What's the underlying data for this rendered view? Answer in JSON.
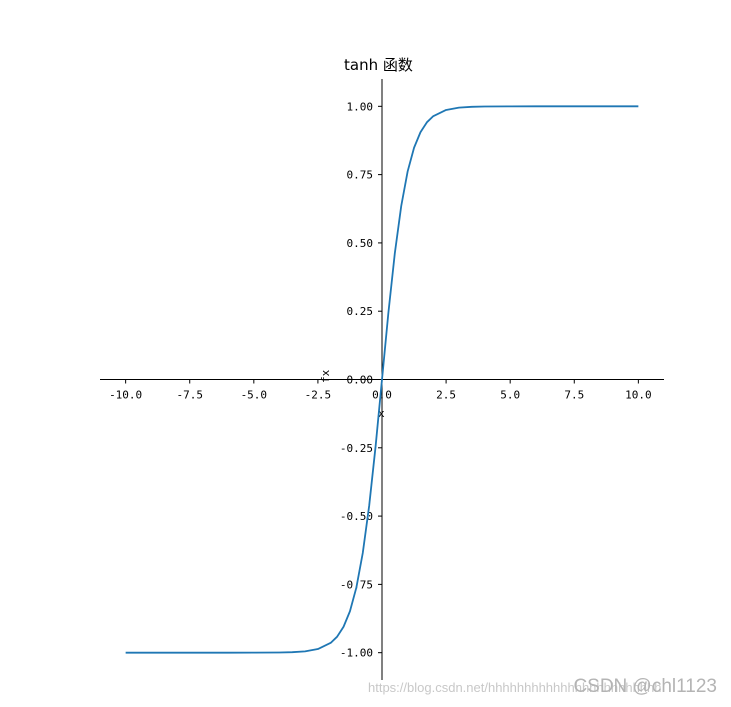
{
  "chart_data": {
    "type": "line",
    "title": "tanh 函数",
    "xlabel": "x",
    "ylabel": "fx",
    "xlim": [
      -11,
      11
    ],
    "ylim": [
      -1.1,
      1.1
    ],
    "x_ticks": [
      -10.0,
      -7.5,
      -5.0,
      -2.5,
      0.0,
      2.5,
      5.0,
      7.5,
      10.0
    ],
    "x_tick_labels": [
      "-10.0",
      "-7.5",
      "-5.0",
      "-2.5",
      "0.0",
      "2.5",
      "5.0",
      "7.5",
      "10.0"
    ],
    "y_ticks": [
      1.0,
      0.75,
      0.5,
      0.25,
      0.0,
      -0.25,
      -0.5,
      -0.75,
      -1.0
    ],
    "y_tick_labels": [
      "1.00",
      "0.75",
      "0.50",
      "0.25",
      "0.00",
      "-0.25",
      "-0.50",
      "-0.75",
      "-1.00"
    ],
    "grid": false,
    "series": [
      {
        "color": "#1f77b4",
        "x": [
          -10,
          -8,
          -6,
          -5,
          -4,
          -3.5,
          -3,
          -2.5,
          -2,
          -1.75,
          -1.5,
          -1.25,
          -1,
          -0.75,
          -0.5,
          -0.25,
          0,
          0.25,
          0.5,
          0.75,
          1,
          1.25,
          1.5,
          1.75,
          2,
          2.5,
          3,
          3.5,
          4,
          5,
          6,
          8,
          10
        ],
        "y": [
          -1.0,
          -1.0,
          -1.0,
          -0.9999,
          -0.9993,
          -0.9982,
          -0.9951,
          -0.9866,
          -0.964,
          -0.9414,
          -0.9051,
          -0.8483,
          -0.7616,
          -0.6351,
          -0.4621,
          -0.2449,
          0.0,
          0.2449,
          0.4621,
          0.6351,
          0.7616,
          0.8483,
          0.9051,
          0.9414,
          0.964,
          0.9866,
          0.9951,
          0.9982,
          0.9993,
          0.9999,
          1.0,
          1.0,
          1.0
        ]
      }
    ]
  },
  "watermark": {
    "url": "https://blog.csdn.net/hhhhhhhhhhhhhhhhhhhhhhhh",
    "brand": "CSDN @chl1123"
  }
}
